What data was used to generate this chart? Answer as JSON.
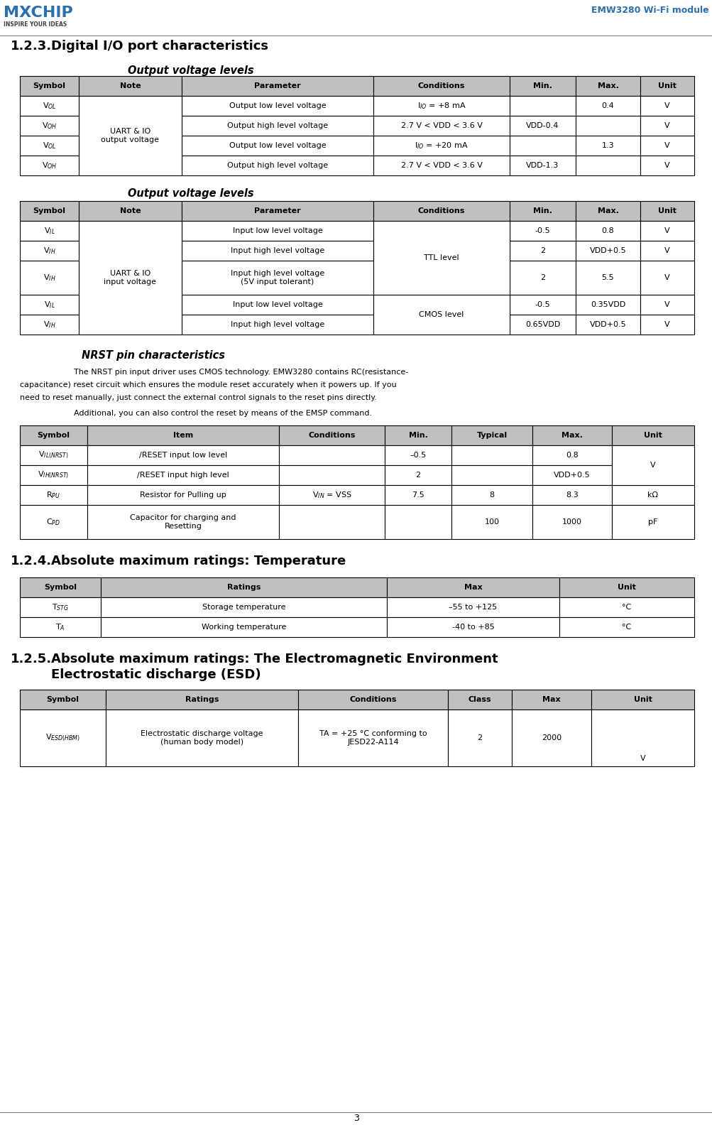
{
  "page_title": "EMW3280 Wi-Fi module",
  "section123_title": "1.2.3.",
  "section123_text": "Digital I/O port characteristics",
  "table1_subtitle": "Output voltage levels",
  "table1_headers": [
    "Symbol",
    "Note",
    "Parameter",
    "Conditions",
    "Min.",
    "Max.",
    "Unit"
  ],
  "table2_subtitle": "Output voltage levels",
  "table2_headers": [
    "Symbol",
    "Note",
    "Parameter",
    "Conditions",
    "Min.",
    "Max.",
    "Unit"
  ],
  "nrst_title": "NRST pin characteristics",
  "nrst_text1": "    The NRST pin input driver uses CMOS technology. EMW3280 contains RC(resistance-",
  "nrst_text2": "capacitance) reset circuit which ensures the module reset accurately when it powers up. If you",
  "nrst_text3": "need to reset manually, just connect the external control signals to the reset pins directly.",
  "nrst_text4": "    Additional, you can also control the reset by means of the EMSP command.",
  "table3_headers": [
    "Symbol",
    "Item",
    "Conditions",
    "Min.",
    "Typical",
    "Max.",
    "Unit"
  ],
  "section124_num": "1.2.4.",
  "section124_text": "Absolute maximum ratings: Temperature",
  "table4_headers": [
    "Symbol",
    "Ratings",
    "Max",
    "Unit"
  ],
  "section125_num": "1.2.5.",
  "section125_text": "Absolute maximum ratings: The Electromagnetic Environment",
  "section125_text2": "Electrostatic discharge (ESD)",
  "table5_headers": [
    "Symbol",
    "Ratings",
    "Conditions",
    "Class",
    "Max",
    "Unit"
  ],
  "page_num": "3",
  "header_bg": "#c0c0c0",
  "border_color": "#000000",
  "page_title_color": "#2c6fad",
  "section_color": "#000000"
}
